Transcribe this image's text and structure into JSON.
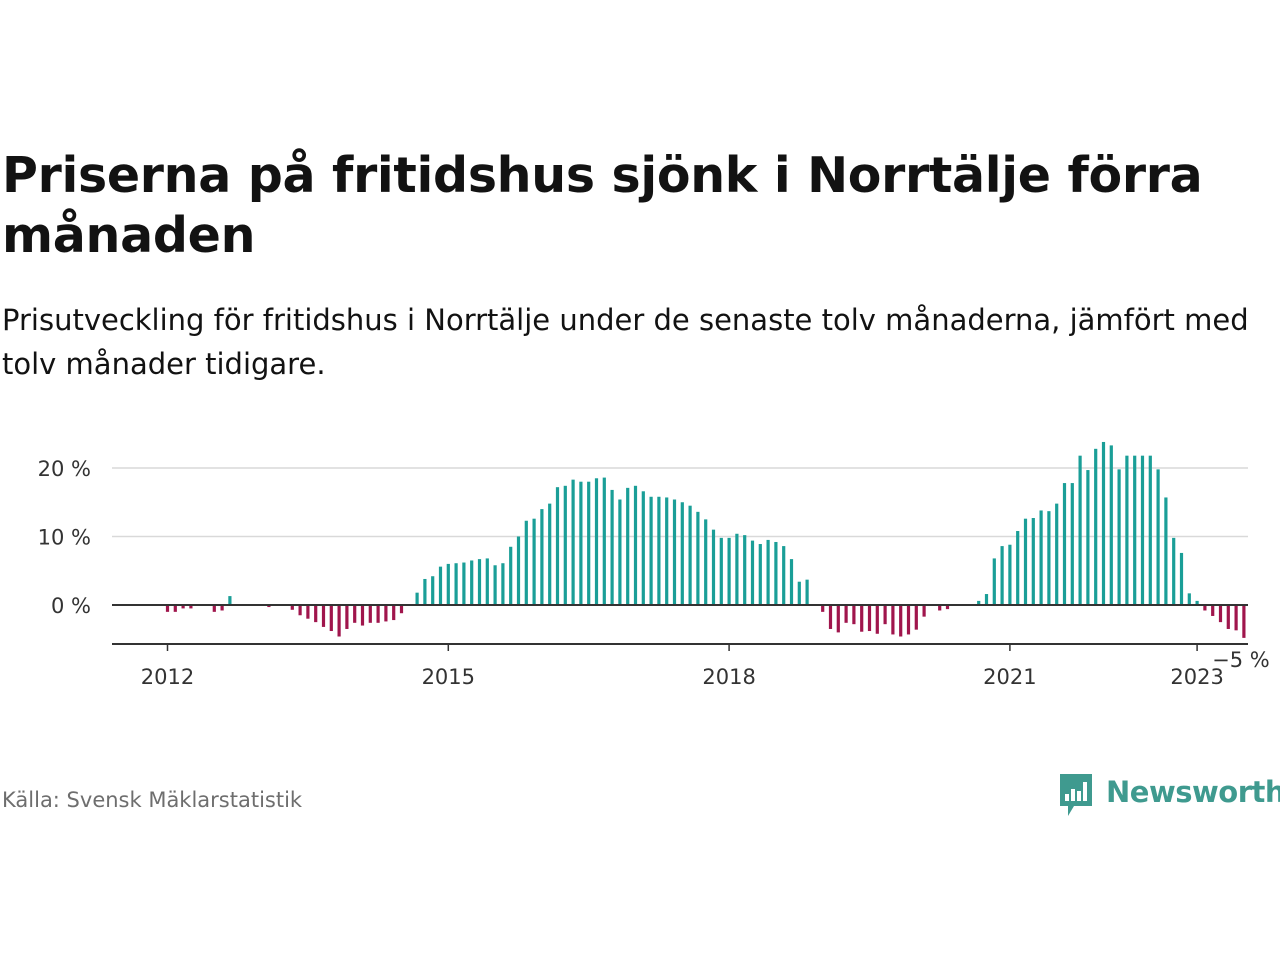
{
  "title": "Priserna på fritidshus sjönk i Norrtälje förra månaden",
  "subtitle": "Prisutveckling för fritidshus i Norrtälje under de senaste tolv månaderna, jämfört med tolv månader tidigare.",
  "source": "Källa: Svensk Mäklarstatistik",
  "brand": {
    "name": "Newsworthy",
    "icon": "newsworthy-logo-icon"
  },
  "colors": {
    "positive": "#1a9e97",
    "negative": "#a0154c",
    "grid": "#d9d9d9",
    "zero_line": "#333333",
    "brand": "#3f9a8f"
  },
  "chart_data": {
    "type": "bar",
    "title": "",
    "xlabel": "",
    "ylabel": "",
    "y_ticks": [
      {
        "value": 0,
        "label": "0 %"
      },
      {
        "value": 10,
        "label": "10 %"
      },
      {
        "value": 20,
        "label": "20 %"
      }
    ],
    "x_ticks": [
      {
        "value": 2012,
        "label": "2012"
      },
      {
        "value": 2015,
        "label": "2015"
      },
      {
        "value": 2018,
        "label": "2018"
      },
      {
        "value": 2021,
        "label": "2021"
      },
      {
        "value": 2023,
        "label": "2023"
      }
    ],
    "ylim": [
      -6,
      25
    ],
    "x_start": "2012-01",
    "grid": true,
    "end_label": "−5 %",
    "values": [
      -1,
      -1,
      -0.5,
      -0.5,
      0,
      0,
      -1,
      -0.8,
      1.3,
      0,
      0,
      0,
      0,
      -0.3,
      0,
      0,
      -0.7,
      -1.5,
      -2,
      -2.5,
      -3.2,
      -3.8,
      -4.6,
      -3.5,
      -2.6,
      -3,
      -2.6,
      -2.6,
      -2.4,
      -2.2,
      -1.2,
      0,
      1.8,
      3.8,
      4.2,
      5.6,
      6,
      6.1,
      6.2,
      6.5,
      6.7,
      6.8,
      5.8,
      6.1,
      8.5,
      10,
      12.3,
      12.6,
      14,
      14.8,
      17.2,
      17.4,
      18.3,
      18,
      18,
      18.5,
      18.6,
      16.8,
      15.4,
      17.1,
      17.4,
      16.6,
      15.8,
      15.8,
      15.7,
      15.4,
      15,
      14.5,
      13.6,
      12.5,
      11,
      9.8,
      9.8,
      10.4,
      10.2,
      9.4,
      8.9,
      9.5,
      9.2,
      8.6,
      6.7,
      3.4,
      3.7,
      0,
      -1,
      -3.5,
      -4,
      -2.6,
      -2.8,
      -3.9,
      -3.8,
      -4.2,
      -2.8,
      -4.3,
      -4.6,
      -4.3,
      -3.6,
      -1.7,
      0,
      -0.8,
      -0.6,
      0,
      0,
      0,
      0.6,
      1.6,
      6.8,
      8.6,
      8.8,
      10.8,
      12.6,
      12.7,
      13.8,
      13.7,
      14.8,
      17.8,
      17.8,
      21.8,
      19.7,
      22.8,
      23.8,
      23.3,
      19.8,
      21.8,
      21.8,
      21.8,
      21.8,
      19.8,
      15.7,
      9.8,
      7.6,
      1.7,
      0.6,
      -0.8,
      -1.6,
      -2.5,
      -3.5,
      -3.7,
      -4.8
    ]
  }
}
